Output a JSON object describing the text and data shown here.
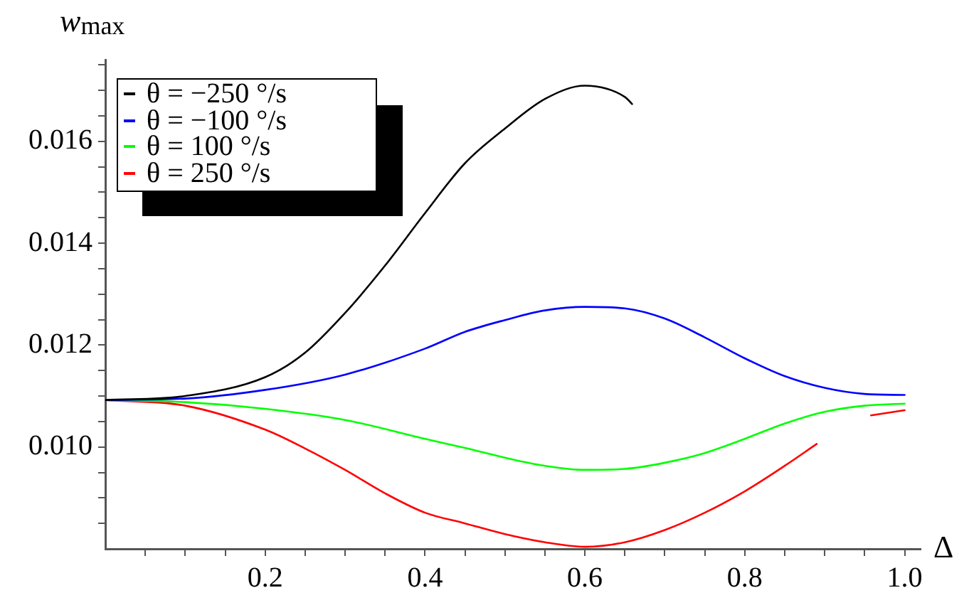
{
  "chart_data": {
    "type": "line",
    "xlabel": "Δ",
    "ylabel": "w$_{max}$",
    "xlim": [
      0,
      1.02
    ],
    "ylim": [
      0.008,
      0.0176
    ],
    "xticks": [
      {
        "value": 0.05,
        "label": null
      },
      {
        "value": 0.1,
        "label": null
      },
      {
        "value": 0.15,
        "label": null
      },
      0.2,
      {
        "value": 0.25,
        "label": null
      },
      {
        "value": 0.3,
        "label": null
      },
      {
        "value": 0.35,
        "label": null
      },
      0.4,
      {
        "value": 0.45,
        "label": null
      },
      {
        "value": 0.5,
        "label": null
      },
      {
        "value": 0.55,
        "label": null
      },
      0.6,
      {
        "value": 0.65,
        "label": null
      },
      {
        "value": 0.7,
        "label": null
      },
      {
        "value": 0.75,
        "label": null
      },
      0.8,
      {
        "value": 0.85,
        "label": null
      },
      {
        "value": 0.9,
        "label": null
      },
      {
        "value": 0.95,
        "label": null
      },
      {
        "value": 1.0,
        "label": "1.0"
      }
    ],
    "yticks": [
      {
        "value": 0.0085,
        "label": null
      },
      {
        "value": 0.009,
        "label": null
      },
      {
        "value": 0.0095,
        "label": null
      },
      {
        "value": 0.01,
        "label": "0.010"
      },
      {
        "value": 0.0105,
        "label": null
      },
      {
        "value": 0.011,
        "label": null
      },
      {
        "value": 0.0115,
        "label": null
      },
      0.012,
      {
        "value": 0.0125,
        "label": null
      },
      {
        "value": 0.013,
        "label": null
      },
      {
        "value": 0.0135,
        "label": null
      },
      0.014,
      {
        "value": 0.0145,
        "label": null
      },
      {
        "value": 0.015,
        "label": null
      },
      {
        "value": 0.0155,
        "label": null
      },
      0.016,
      {
        "value": 0.0165,
        "label": null
      },
      {
        "value": 0.017,
        "label": null
      },
      {
        "value": 0.0175,
        "label": null
      }
    ],
    "grid": false,
    "legend": "top left",
    "marker": "none",
    "line_style": "solid",
    "series": [
      {
        "name": "θ = −250 °/s",
        "color": "#000000",
        "x": [
          0,
          0.1,
          0.2,
          0.25,
          0.3,
          0.35,
          0.4,
          0.45,
          0.5,
          0.55,
          0.6,
          0.65,
          0.659
        ],
        "values": [
          0.01092,
          0.011,
          0.01137,
          0.01185,
          0.01263,
          0.01356,
          0.01459,
          0.01557,
          0.01625,
          0.01683,
          0.01709,
          0.01687,
          0.01673
        ]
      },
      {
        "name": "θ = −100 °/s",
        "color": "#0000ff",
        "x": [
          0,
          0.1,
          0.2,
          0.3,
          0.4,
          0.45,
          0.5,
          0.55,
          0.6,
          0.65,
          0.7,
          0.75,
          0.8,
          0.85,
          0.9,
          0.95,
          1.0
        ],
        "values": [
          0.01092,
          0.01095,
          0.01112,
          0.01142,
          0.01193,
          0.01226,
          0.01249,
          0.01268,
          0.01275,
          0.01272,
          0.01252,
          0.01215,
          0.01174,
          0.01139,
          0.01116,
          0.01104,
          0.01102
        ]
      },
      {
        "name": "θ = 100 °/s",
        "color": "#00ff00",
        "x": [
          0,
          0.1,
          0.2,
          0.3,
          0.4,
          0.45,
          0.5,
          0.55,
          0.6,
          0.65,
          0.7,
          0.75,
          0.8,
          0.85,
          0.9,
          0.95,
          1.0
        ],
        "values": [
          0.01092,
          0.01088,
          0.01075,
          0.01053,
          0.01016,
          0.00998,
          0.00979,
          0.00963,
          0.00955,
          0.00957,
          0.00969,
          0.00988,
          0.01016,
          0.01046,
          0.01069,
          0.01081,
          0.01085
        ]
      },
      {
        "name": "θ = 250 °/s",
        "color": "#ff0000",
        "x": [
          0,
          0.1,
          0.2,
          0.25,
          0.3,
          0.35,
          0.4,
          0.45,
          0.5,
          0.55,
          0.6,
          0.65,
          0.7,
          0.75,
          0.8,
          0.85,
          0.89,
          0.925,
          0.958,
          1.0
        ],
        "values": [
          0.01092,
          0.01081,
          0.01034,
          0.00997,
          0.00955,
          0.00909,
          0.00871,
          0.0085,
          0.00829,
          0.00813,
          0.00804,
          0.00813,
          0.00837,
          0.00871,
          0.00913,
          0.00963,
          0.01006,
          null,
          0.01062,
          0.01072
        ]
      }
    ]
  }
}
